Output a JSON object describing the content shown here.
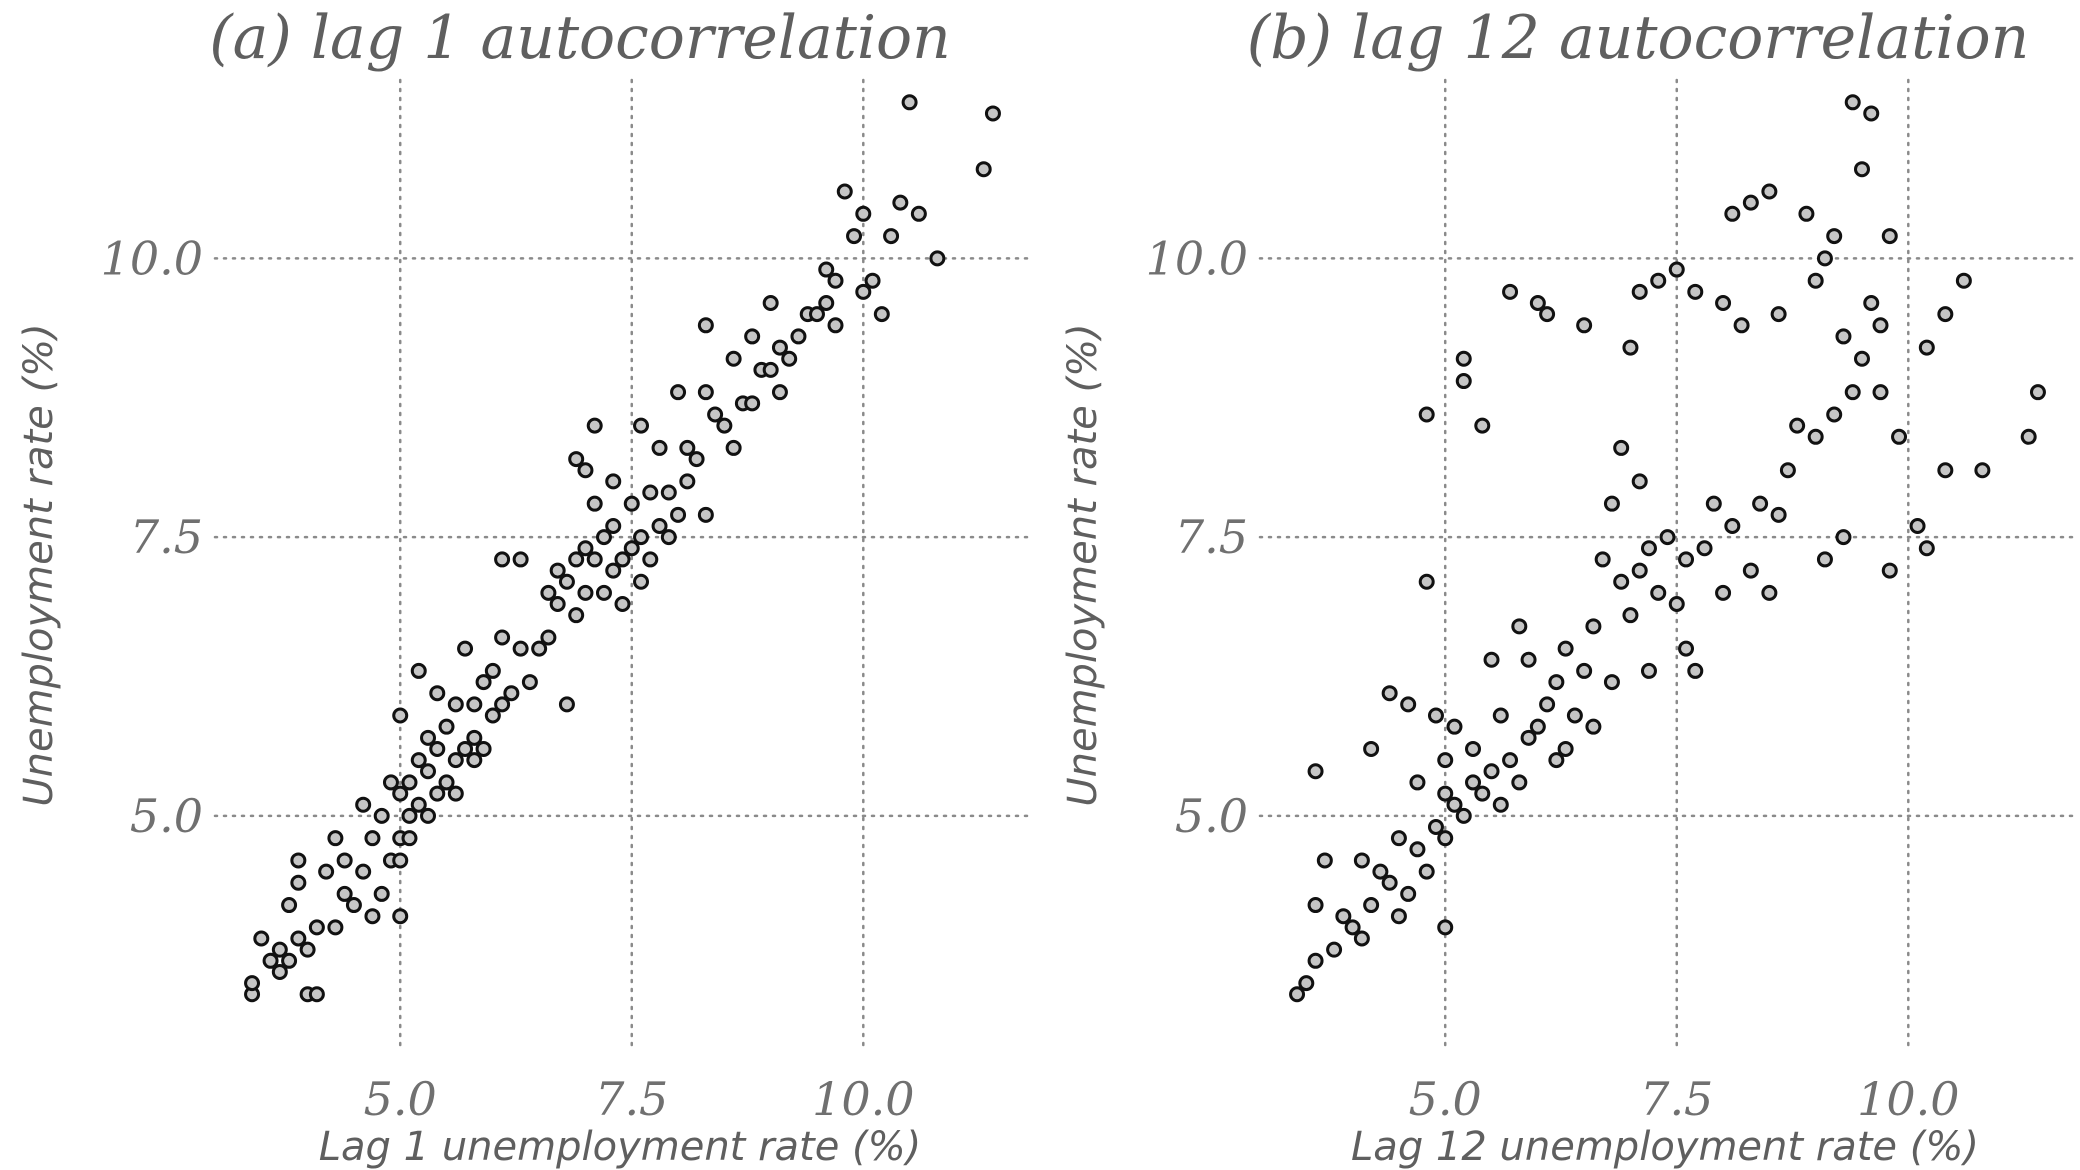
{
  "chart_data": [
    {
      "type": "scatter",
      "title": "(a) lag 1 autocorrelation",
      "xlabel": "Lag 1 unemployment rate (%)",
      "ylabel": "Unemployment rate (%)",
      "xlim": [
        3.0,
        11.8
      ],
      "ylim": [
        2.9,
        11.6
      ],
      "xticks": [
        5.0,
        7.5,
        10.0
      ],
      "xtick_labels": [
        "5.0",
        "7.5",
        "10.0"
      ],
      "yticks": [
        5.0,
        7.5,
        10.0
      ],
      "ytick_labels": [
        "5.0",
        "7.5",
        "10.0"
      ],
      "grid": "dotted",
      "series": [
        {
          "values": [
            [
              3.4,
              3.4
            ],
            [
              3.4,
              3.5
            ],
            [
              3.5,
              3.9
            ],
            [
              3.6,
              3.7
            ],
            [
              3.7,
              3.6
            ],
            [
              3.7,
              3.8
            ],
            [
              3.8,
              3.7
            ],
            [
              3.8,
              4.2
            ],
            [
              3.9,
              3.9
            ],
            [
              3.9,
              4.6
            ],
            [
              3.9,
              4.4
            ],
            [
              4.0,
              3.8
            ],
            [
              4.0,
              3.4
            ],
            [
              4.1,
              4.0
            ],
            [
              4.1,
              3.4
            ],
            [
              4.2,
              4.5
            ],
            [
              4.3,
              4.8
            ],
            [
              4.3,
              4.0
            ],
            [
              4.4,
              4.3
            ],
            [
              4.4,
              4.6
            ],
            [
              4.5,
              4.2
            ],
            [
              4.6,
              4.5
            ],
            [
              4.6,
              5.1
            ],
            [
              4.7,
              4.1
            ],
            [
              4.7,
              4.8
            ],
            [
              4.8,
              4.3
            ],
            [
              4.8,
              5.0
            ],
            [
              4.9,
              4.6
            ],
            [
              4.9,
              5.3
            ],
            [
              5.0,
              4.6
            ],
            [
              5.0,
              4.8
            ],
            [
              5.0,
              5.2
            ],
            [
              5.0,
              5.9
            ],
            [
              5.0,
              4.1
            ],
            [
              5.1,
              5.0
            ],
            [
              5.1,
              5.3
            ],
            [
              5.1,
              4.8
            ],
            [
              5.2,
              5.1
            ],
            [
              5.2,
              5.5
            ],
            [
              5.2,
              6.3
            ],
            [
              5.3,
              5.0
            ],
            [
              5.3,
              5.4
            ],
            [
              5.3,
              5.7
            ],
            [
              5.4,
              5.2
            ],
            [
              5.4,
              5.6
            ],
            [
              5.4,
              6.1
            ],
            [
              5.5,
              5.3
            ],
            [
              5.5,
              5.8
            ],
            [
              5.6,
              5.5
            ],
            [
              5.6,
              5.2
            ],
            [
              5.6,
              6.0
            ],
            [
              5.7,
              5.6
            ],
            [
              5.7,
              6.5
            ],
            [
              5.8,
              5.7
            ],
            [
              5.8,
              6.0
            ],
            [
              5.8,
              5.5
            ],
            [
              5.9,
              6.2
            ],
            [
              5.9,
              5.6
            ],
            [
              6.0,
              5.9
            ],
            [
              6.0,
              6.3
            ],
            [
              6.1,
              6.0
            ],
            [
              6.1,
              6.6
            ],
            [
              6.1,
              7.3
            ],
            [
              6.2,
              6.1
            ],
            [
              6.3,
              6.5
            ],
            [
              6.3,
              7.3
            ],
            [
              6.4,
              6.2
            ],
            [
              6.5,
              6.5
            ],
            [
              6.6,
              6.6
            ],
            [
              6.6,
              7.0
            ],
            [
              6.7,
              6.9
            ],
            [
              6.7,
              7.2
            ],
            [
              6.8,
              7.1
            ],
            [
              6.8,
              6.0
            ],
            [
              6.9,
              6.8
            ],
            [
              6.9,
              7.3
            ],
            [
              6.9,
              8.2
            ],
            [
              7.0,
              7.0
            ],
            [
              7.0,
              7.4
            ],
            [
              7.0,
              8.1
            ],
            [
              7.1,
              7.3
            ],
            [
              7.1,
              8.5
            ],
            [
              7.1,
              7.8
            ],
            [
              7.2,
              7.0
            ],
            [
              7.2,
              7.5
            ],
            [
              7.3,
              7.2
            ],
            [
              7.3,
              8.0
            ],
            [
              7.3,
              7.6
            ],
            [
              7.4,
              6.9
            ],
            [
              7.4,
              7.3
            ],
            [
              7.5,
              7.4
            ],
            [
              7.5,
              7.8
            ],
            [
              7.6,
              7.1
            ],
            [
              7.6,
              7.5
            ],
            [
              7.6,
              8.5
            ],
            [
              7.7,
              7.9
            ],
            [
              7.7,
              7.3
            ],
            [
              7.8,
              7.6
            ],
            [
              7.8,
              8.3
            ],
            [
              7.9,
              7.9
            ],
            [
              7.9,
              7.5
            ],
            [
              8.0,
              7.7
            ],
            [
              8.0,
              8.8
            ],
            [
              8.1,
              8.0
            ],
            [
              8.1,
              8.3
            ],
            [
              8.2,
              8.2
            ],
            [
              8.3,
              7.7
            ],
            [
              8.3,
              8.8
            ],
            [
              8.3,
              9.4
            ],
            [
              8.4,
              8.6
            ],
            [
              8.5,
              8.5
            ],
            [
              8.6,
              8.3
            ],
            [
              8.6,
              9.1
            ],
            [
              8.7,
              8.7
            ],
            [
              8.8,
              8.7
            ],
            [
              8.8,
              9.3
            ],
            [
              8.9,
              9.0
            ],
            [
              9.0,
              9.0
            ],
            [
              9.0,
              9.6
            ],
            [
              9.1,
              8.8
            ],
            [
              9.1,
              9.2
            ],
            [
              9.2,
              9.1
            ],
            [
              9.3,
              9.3
            ],
            [
              9.4,
              9.5
            ],
            [
              9.5,
              9.5
            ],
            [
              9.6,
              9.6
            ],
            [
              9.6,
              9.9
            ],
            [
              9.7,
              9.4
            ],
            [
              9.7,
              9.8
            ],
            [
              9.8,
              10.6
            ],
            [
              9.9,
              10.2
            ],
            [
              10.0,
              10.4
            ],
            [
              10.0,
              9.7
            ],
            [
              10.1,
              9.8
            ],
            [
              10.2,
              9.5
            ],
            [
              10.3,
              10.2
            ],
            [
              10.4,
              10.5
            ],
            [
              10.5,
              11.4
            ],
            [
              10.6,
              10.4
            ],
            [
              10.8,
              10.0
            ],
            [
              11.3,
              10.8
            ],
            [
              11.4,
              11.3
            ]
          ]
        }
      ]
    },
    {
      "type": "scatter",
      "title": "(b) lag 12 autocorrelation",
      "xlabel": "Lag 12 unemployment rate (%)",
      "ylabel": "Unemployment rate (%)",
      "xlim": [
        3.0,
        11.8
      ],
      "ylim": [
        2.9,
        11.6
      ],
      "xticks": [
        5.0,
        7.5,
        10.0
      ],
      "xtick_labels": [
        "5.0",
        "7.5",
        "10.0"
      ],
      "yticks": [
        5.0,
        7.5,
        10.0
      ],
      "ytick_labels": [
        "5.0",
        "7.5",
        "10.0"
      ],
      "grid": "dotted",
      "series": [
        {
          "values": [
            [
              3.4,
              3.4
            ],
            [
              3.5,
              3.5
            ],
            [
              3.6,
              3.7
            ],
            [
              3.6,
              5.4
            ],
            [
              3.6,
              4.2
            ],
            [
              3.7,
              4.6
            ],
            [
              3.8,
              3.8
            ],
            [
              3.9,
              4.1
            ],
            [
              4.0,
              4.0
            ],
            [
              4.1,
              3.9
            ],
            [
              4.1,
              4.6
            ],
            [
              4.2,
              4.2
            ],
            [
              4.2,
              5.6
            ],
            [
              4.3,
              4.5
            ],
            [
              4.4,
              4.4
            ],
            [
              4.4,
              6.1
            ],
            [
              4.5,
              4.1
            ],
            [
              4.5,
              4.8
            ],
            [
              4.6,
              4.3
            ],
            [
              4.6,
              6.0
            ],
            [
              4.7,
              4.7
            ],
            [
              4.7,
              5.3
            ],
            [
              4.8,
              4.5
            ],
            [
              4.8,
              8.6
            ],
            [
              4.8,
              7.1
            ],
            [
              4.9,
              4.9
            ],
            [
              4.9,
              5.9
            ],
            [
              5.0,
              4.8
            ],
            [
              5.0,
              5.2
            ],
            [
              5.0,
              5.5
            ],
            [
              5.0,
              4.0
            ],
            [
              5.1,
              5.1
            ],
            [
              5.1,
              5.8
            ],
            [
              5.2,
              5.0
            ],
            [
              5.2,
              9.1
            ],
            [
              5.2,
              8.9
            ],
            [
              5.3,
              5.3
            ],
            [
              5.3,
              5.6
            ],
            [
              5.4,
              5.2
            ],
            [
              5.4,
              8.5
            ],
            [
              5.5,
              5.4
            ],
            [
              5.5,
              6.4
            ],
            [
              5.6,
              5.1
            ],
            [
              5.6,
              5.9
            ],
            [
              5.7,
              5.5
            ],
            [
              5.7,
              9.7
            ],
            [
              5.8,
              5.3
            ],
            [
              5.8,
              6.7
            ],
            [
              5.9,
              5.7
            ],
            [
              5.9,
              6.4
            ],
            [
              6.0,
              5.8
            ],
            [
              6.0,
              9.6
            ],
            [
              6.1,
              6.0
            ],
            [
              6.1,
              9.5
            ],
            [
              6.2,
              5.5
            ],
            [
              6.2,
              6.2
            ],
            [
              6.3,
              5.6
            ],
            [
              6.3,
              6.5
            ],
            [
              6.4,
              5.9
            ],
            [
              6.5,
              9.4
            ],
            [
              6.5,
              6.3
            ],
            [
              6.6,
              6.7
            ],
            [
              6.6,
              5.8
            ],
            [
              6.7,
              7.3
            ],
            [
              6.8,
              6.2
            ],
            [
              6.8,
              7.8
            ],
            [
              6.9,
              7.1
            ],
            [
              6.9,
              8.3
            ],
            [
              7.0,
              6.8
            ],
            [
              7.0,
              9.2
            ],
            [
              7.1,
              7.2
            ],
            [
              7.1,
              8.0
            ],
            [
              7.1,
              9.7
            ],
            [
              7.2,
              6.3
            ],
            [
              7.2,
              7.4
            ],
            [
              7.3,
              7.0
            ],
            [
              7.3,
              9.8
            ],
            [
              7.4,
              7.5
            ],
            [
              7.5,
              6.9
            ],
            [
              7.5,
              9.9
            ],
            [
              7.6,
              7.3
            ],
            [
              7.6,
              6.5
            ],
            [
              7.7,
              9.7
            ],
            [
              7.7,
              6.3
            ],
            [
              7.8,
              7.4
            ],
            [
              7.9,
              7.8
            ],
            [
              8.0,
              9.6
            ],
            [
              8.0,
              7.0
            ],
            [
              8.1,
              10.4
            ],
            [
              8.1,
              7.6
            ],
            [
              8.2,
              9.4
            ],
            [
              8.3,
              7.2
            ],
            [
              8.3,
              10.5
            ],
            [
              8.4,
              7.8
            ],
            [
              8.5,
              10.6
            ],
            [
              8.5,
              7.0
            ],
            [
              8.6,
              9.5
            ],
            [
              8.6,
              7.7
            ],
            [
              8.7,
              8.1
            ],
            [
              8.8,
              8.5
            ],
            [
              8.9,
              10.4
            ],
            [
              9.0,
              8.4
            ],
            [
              9.0,
              9.8
            ],
            [
              9.1,
              10.0
            ],
            [
              9.1,
              7.3
            ],
            [
              9.2,
              8.6
            ],
            [
              9.2,
              10.2
            ],
            [
              9.3,
              9.3
            ],
            [
              9.3,
              7.5
            ],
            [
              9.4,
              11.4
            ],
            [
              9.4,
              8.8
            ],
            [
              9.5,
              9.1
            ],
            [
              9.5,
              10.8
            ],
            [
              9.6,
              11.3
            ],
            [
              9.6,
              9.6
            ],
            [
              9.7,
              8.8
            ],
            [
              9.7,
              9.4
            ],
            [
              9.8,
              10.2
            ],
            [
              9.8,
              7.2
            ],
            [
              9.9,
              8.4
            ],
            [
              10.1,
              7.6
            ],
            [
              10.2,
              7.4
            ],
            [
              10.2,
              9.2
            ],
            [
              10.4,
              9.5
            ],
            [
              10.4,
              8.1
            ],
            [
              10.6,
              9.8
            ],
            [
              10.8,
              8.1
            ],
            [
              11.3,
              8.4
            ],
            [
              11.4,
              8.8
            ]
          ]
        }
      ]
    }
  ]
}
